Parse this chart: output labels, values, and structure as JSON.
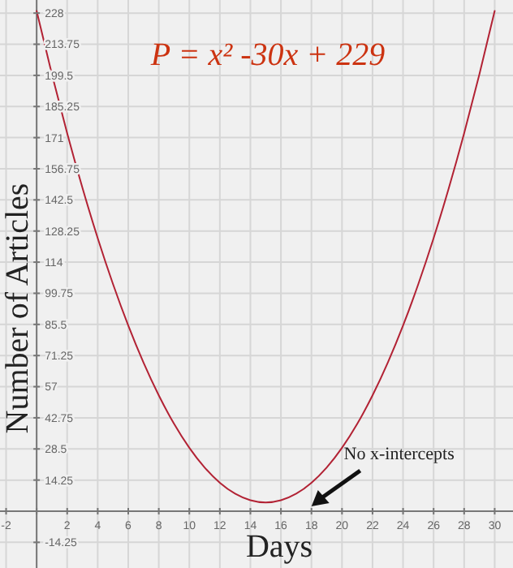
{
  "chart_data": {
    "type": "line",
    "title": "P = x² -30x + 229",
    "xlabel": "Days",
    "ylabel": "Number of Articles",
    "x": [
      0,
      1,
      2,
      3,
      4,
      5,
      6,
      7,
      8,
      9,
      10,
      11,
      12,
      13,
      14,
      15,
      16,
      17,
      18,
      19,
      20,
      21,
      22,
      23,
      24,
      25,
      26,
      27,
      28,
      29,
      30
    ],
    "series": [
      {
        "color": "#b22234",
        "values": [
          229,
          200,
          173,
          148,
          125,
          104,
          85,
          68,
          53,
          40,
          29,
          20,
          13,
          8,
          5,
          4,
          5,
          8,
          13,
          20,
          29,
          40,
          53,
          68,
          85,
          104,
          125,
          148,
          173,
          200,
          229
        ]
      }
    ],
    "xlim": [
      -2.4,
      31.2
    ],
    "ylim": [
      -26,
      234
    ],
    "xticks": [
      -2,
      {
        "value": 0,
        "label": null
      },
      2,
      4,
      6,
      8,
      10,
      12,
      14,
      16,
      18,
      20,
      22,
      24,
      26,
      28,
      30
    ],
    "yticks": [
      -14.25,
      {
        "value": 0,
        "label": null
      },
      14.25,
      28.5,
      42.75,
      57,
      71.25,
      85.5,
      99.75,
      114,
      128.25,
      142.5,
      156.75,
      171,
      185.25,
      199.5,
      213.75,
      228
    ],
    "grid": true,
    "annotations": [
      "No x-intercepts"
    ]
  }
}
